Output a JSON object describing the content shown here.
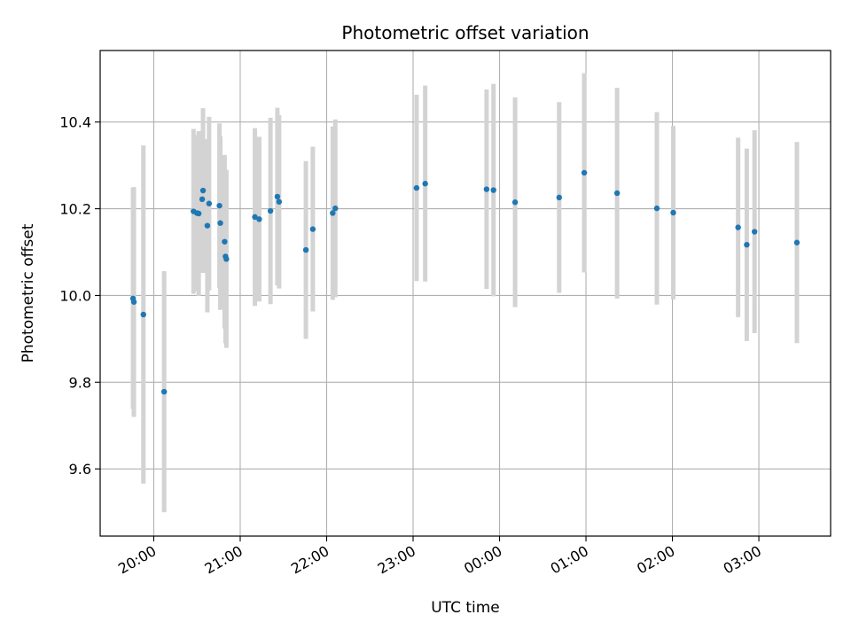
{
  "chart_data": {
    "type": "scatter",
    "title": "Photometric offset variation",
    "xlabel": "UTC time",
    "ylabel": "Photometric offset",
    "x_unit": "hours since 00:00 UTC (axis wraps past midnight)",
    "xlim": [
      19.38,
      27.83
    ],
    "ylim": [
      9.445,
      10.565
    ],
    "grid": true,
    "x_ticks": [
      {
        "value": 20,
        "label": "20:00"
      },
      {
        "value": 21,
        "label": "21:00"
      },
      {
        "value": 22,
        "label": "22:00"
      },
      {
        "value": 23,
        "label": "23:00"
      },
      {
        "value": 24,
        "label": "00:00"
      },
      {
        "value": 25,
        "label": "01:00"
      },
      {
        "value": 26,
        "label": "02:00"
      },
      {
        "value": 27,
        "label": "03:00"
      }
    ],
    "y_ticks": [
      {
        "value": 9.6,
        "label": "9.6"
      },
      {
        "value": 9.8,
        "label": "9.8"
      },
      {
        "value": 10.0,
        "label": "10.0"
      },
      {
        "value": 10.2,
        "label": "10.2"
      },
      {
        "value": 10.4,
        "label": "10.4"
      }
    ],
    "colors": {
      "point": "#1f77b4",
      "errorbar": "#d3d3d3",
      "grid": "#b0b0b0"
    },
    "series": [
      {
        "points": [
          {
            "x": 19.76,
            "y": 9.993,
            "err": 0.255
          },
          {
            "x": 19.77,
            "y": 9.985,
            "err": 0.265
          },
          {
            "x": 19.88,
            "y": 9.956,
            "err": 0.39
          },
          {
            "x": 20.12,
            "y": 9.778,
            "err": 0.278
          },
          {
            "x": 20.46,
            "y": 10.194,
            "err": 0.19
          },
          {
            "x": 20.5,
            "y": 10.19,
            "err": 0.18
          },
          {
            "x": 20.52,
            "y": 10.189,
            "err": 0.19
          },
          {
            "x": 20.56,
            "y": 10.222,
            "err": 0.15
          },
          {
            "x": 20.57,
            "y": 10.242,
            "err": 0.19
          },
          {
            "x": 20.62,
            "y": 10.161,
            "err": 0.2
          },
          {
            "x": 20.64,
            "y": 10.212,
            "err": 0.2
          },
          {
            "x": 20.76,
            "y": 10.207,
            "err": 0.19
          },
          {
            "x": 20.77,
            "y": 10.167,
            "err": 0.2
          },
          {
            "x": 20.82,
            "y": 10.124,
            "err": 0.2
          },
          {
            "x": 20.83,
            "y": 10.09,
            "err": 0.2
          },
          {
            "x": 20.84,
            "y": 10.084,
            "err": 0.205
          },
          {
            "x": 21.17,
            "y": 10.181,
            "err": 0.205
          },
          {
            "x": 21.22,
            "y": 10.176,
            "err": 0.19
          },
          {
            "x": 21.35,
            "y": 10.195,
            "err": 0.215
          },
          {
            "x": 21.43,
            "y": 10.228,
            "err": 0.205
          },
          {
            "x": 21.45,
            "y": 10.216,
            "err": 0.2
          },
          {
            "x": 21.76,
            "y": 10.105,
            "err": 0.205
          },
          {
            "x": 21.84,
            "y": 10.153,
            "err": 0.19
          },
          {
            "x": 22.07,
            "y": 10.19,
            "err": 0.2
          },
          {
            "x": 22.1,
            "y": 10.201,
            "err": 0.205
          },
          {
            "x": 23.04,
            "y": 10.248,
            "err": 0.215
          },
          {
            "x": 23.14,
            "y": 10.258,
            "err": 0.226
          },
          {
            "x": 23.85,
            "y": 10.245,
            "err": 0.23
          },
          {
            "x": 23.93,
            "y": 10.243,
            "err": 0.245
          },
          {
            "x": 24.18,
            "y": 10.215,
            "err": 0.242
          },
          {
            "x": 24.69,
            "y": 10.226,
            "err": 0.22
          },
          {
            "x": 24.98,
            "y": 10.283,
            "err": 0.23
          },
          {
            "x": 25.36,
            "y": 10.236,
            "err": 0.243
          },
          {
            "x": 25.82,
            "y": 10.201,
            "err": 0.222
          },
          {
            "x": 26.01,
            "y": 10.191,
            "err": 0.2
          },
          {
            "x": 26.76,
            "y": 10.157,
            "err": 0.207
          },
          {
            "x": 26.86,
            "y": 10.117,
            "err": 0.222
          },
          {
            "x": 26.95,
            "y": 10.147,
            "err": 0.234
          },
          {
            "x": 27.44,
            "y": 10.122,
            "err": 0.232
          }
        ]
      }
    ]
  }
}
